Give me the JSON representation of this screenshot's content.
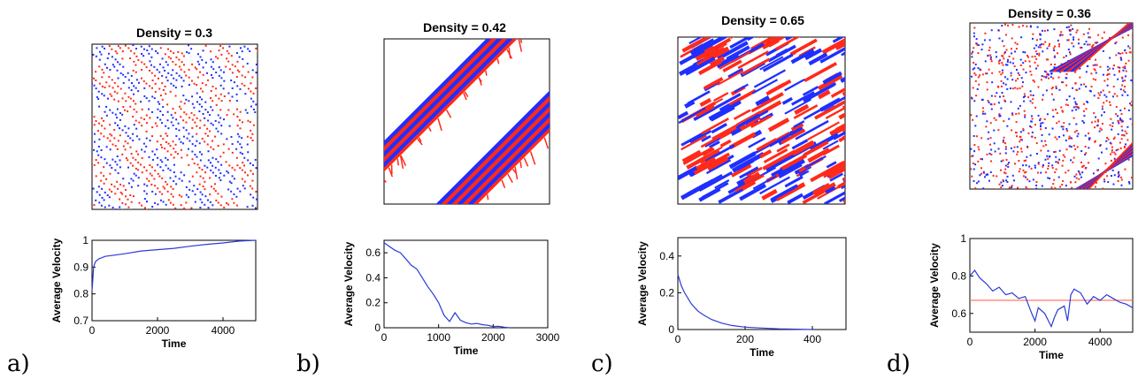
{
  "colors": {
    "red": "#ff2a1a",
    "blue": "#1f2fff",
    "line": "#2b3bd6",
    "hline": "#ff6b5b",
    "frame": "#000000"
  },
  "panels": [
    {
      "label": "a)",
      "title": "Density = 0.3",
      "pattern": "striped-diagonal-traffic"
    },
    {
      "label": "b)",
      "title": "Density = 0.42",
      "pattern": "two-solid-diagonal-bands"
    },
    {
      "label": "c)",
      "title": "Density = 0.65",
      "pattern": "dense-diagonal-segments"
    },
    {
      "label": "d)",
      "title": "Density = 0.36",
      "pattern": "scattered-disordered-traffic"
    }
  ],
  "chart_data": [
    {
      "type": "line",
      "xlabel": "Time",
      "ylabel": "Average Velocity",
      "xlim": [
        0,
        5000
      ],
      "ylim": [
        0.7,
        1.0
      ],
      "xticks": [
        0,
        2000,
        4000
      ],
      "yticks": [
        0.7,
        0.8,
        0.9,
        1
      ],
      "series": [
        {
          "x": [
            0,
            50,
            100,
            200,
            400,
            700,
            1000,
            1500,
            2000,
            2500,
            3000,
            3500,
            4000,
            4500,
            5000
          ],
          "y": [
            0.81,
            0.9,
            0.92,
            0.93,
            0.94,
            0.945,
            0.95,
            0.96,
            0.965,
            0.97,
            0.978,
            0.985,
            0.99,
            0.997,
            1.0
          ]
        }
      ]
    },
    {
      "type": "line",
      "xlabel": "Time",
      "ylabel": "Average Velocity",
      "xlim": [
        0,
        3000
      ],
      "ylim": [
        0,
        0.7
      ],
      "xticks": [
        0,
        1000,
        2000,
        3000
      ],
      "yticks": [
        0,
        0.2,
        0.4,
        0.6
      ],
      "series": [
        {
          "x": [
            0,
            100,
            200,
            300,
            400,
            500,
            600,
            700,
            800,
            900,
            1000,
            1100,
            1200,
            1300,
            1400,
            1500,
            1600,
            1700,
            1800,
            1900,
            2000,
            2100,
            2200,
            2300
          ],
          "y": [
            0.68,
            0.65,
            0.62,
            0.6,
            0.55,
            0.5,
            0.47,
            0.4,
            0.33,
            0.27,
            0.2,
            0.1,
            0.05,
            0.12,
            0.06,
            0.04,
            0.03,
            0.035,
            0.025,
            0.02,
            0.01,
            0.012,
            0.005,
            0.0
          ]
        }
      ]
    },
    {
      "type": "line",
      "xlabel": "Time",
      "ylabel": "Average Velocity",
      "xlim": [
        0,
        500
      ],
      "ylim": [
        0,
        0.5
      ],
      "xticks": [
        0,
        200,
        400
      ],
      "yticks": [
        0,
        0.2,
        0.4
      ],
      "series": [
        {
          "x": [
            0,
            10,
            20,
            30,
            40,
            60,
            80,
            100,
            130,
            160,
            200,
            250,
            300,
            350,
            400
          ],
          "y": [
            0.3,
            0.24,
            0.2,
            0.17,
            0.14,
            0.1,
            0.075,
            0.055,
            0.035,
            0.022,
            0.013,
            0.008,
            0.004,
            0.002,
            0.0
          ]
        }
      ]
    },
    {
      "type": "line",
      "xlabel": "Time",
      "ylabel": "Average Velocity",
      "xlim": [
        0,
        5000
      ],
      "ylim": [
        0.5,
        1.0
      ],
      "xticks": [
        0,
        2000,
        4000
      ],
      "yticks": [
        0.6,
        0.8,
        1
      ],
      "hline": 0.67,
      "series": [
        {
          "x": [
            0,
            150,
            300,
            500,
            700,
            900,
            1100,
            1300,
            1500,
            1700,
            1900,
            2000,
            2100,
            2300,
            2500,
            2600,
            2700,
            2900,
            3000,
            3100,
            3200,
            3400,
            3600,
            3800,
            4000,
            4200,
            4400,
            4600,
            4800,
            5000
          ],
          "y": [
            0.8,
            0.83,
            0.79,
            0.76,
            0.72,
            0.74,
            0.7,
            0.71,
            0.68,
            0.69,
            0.6,
            0.56,
            0.63,
            0.6,
            0.53,
            0.58,
            0.62,
            0.64,
            0.56,
            0.7,
            0.73,
            0.71,
            0.65,
            0.69,
            0.67,
            0.7,
            0.68,
            0.66,
            0.65,
            0.63
          ]
        }
      ]
    }
  ]
}
